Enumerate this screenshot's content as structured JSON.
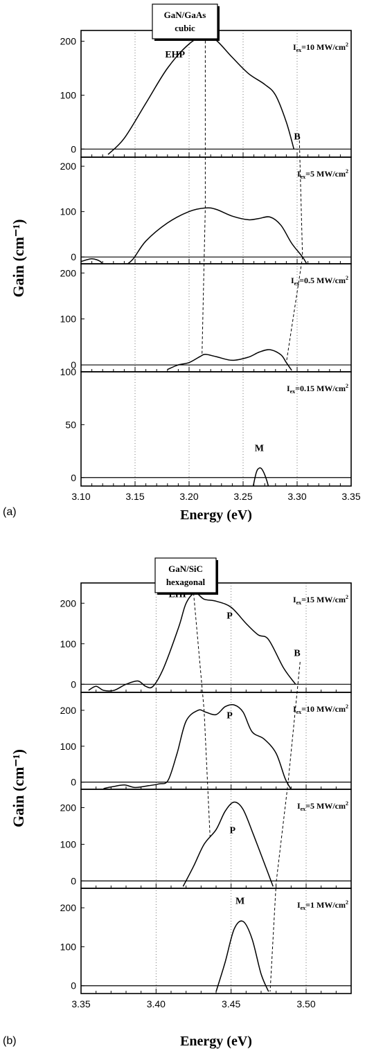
{
  "chart_data": [
    {
      "type": "line",
      "figure_label": "(a)",
      "sample": [
        "GaN/GaAs",
        "cubic"
      ],
      "xlabel": "Energy (eV)",
      "ylabel": "Gain (cm⁻¹)",
      "xlim": [
        3.1,
        3.35
      ],
      "xticks": [
        "3.10",
        "3.15",
        "3.20",
        "3.25",
        "3.30",
        "3.35"
      ],
      "grid": "vertical dotted",
      "panels": [
        {
          "series": [
            {
              "x": [
                3.125,
                3.14,
                3.16,
                3.18,
                3.2,
                3.215,
                3.225,
                3.24,
                3.255,
                3.27,
                3.28,
                3.29,
                3.297
              ],
              "y": [
                -10,
                20,
                85,
                150,
                195,
                210,
                202,
                170,
                140,
                120,
                100,
                50,
                0
              ]
            }
          ],
          "ylim": [
            -15,
            220
          ],
          "yticks": [
            "0",
            "100",
            "200"
          ],
          "intensity": {
            "prefix": "I",
            "sub": "ex",
            "value": "=10 MW/cm",
            "sup": "2"
          },
          "labels": [
            {
              "text": "EHP",
              "x": 3.187,
              "y": 170
            },
            {
              "text": "B",
              "x": 3.3,
              "y": 18
            }
          ]
        },
        {
          "series": [
            {
              "x": [
                3.1,
                3.11,
                3.118,
                3.12
              ],
              "y": [
                -10,
                -4,
                -10,
                -20
              ]
            },
            {
              "x": [
                3.14,
                3.148,
                3.16,
                3.18,
                3.2,
                3.215,
                3.225,
                3.24,
                3.255,
                3.265,
                3.275,
                3.285,
                3.295,
                3.305,
                3.31
              ],
              "y": [
                -20,
                -5,
                35,
                75,
                100,
                108,
                105,
                90,
                82,
                85,
                88,
                70,
                30,
                0,
                -20
              ]
            }
          ],
          "ylim": [
            -15,
            220
          ],
          "yticks": [
            "0",
            "100",
            "200"
          ],
          "intensity": {
            "prefix": "I",
            "sub": "ex",
            "value": "=5 MW/cm",
            "sup": "2"
          },
          "labels": []
        },
        {
          "series": [
            {
              "x": [
                3.18,
                3.19,
                3.2,
                3.21,
                3.215,
                3.225,
                3.24,
                3.255,
                3.265,
                3.275,
                3.285,
                3.29,
                3.295
              ],
              "y": [
                -10,
                0,
                5,
                18,
                23,
                18,
                10,
                17,
                28,
                33,
                22,
                5,
                -12
              ]
            }
          ],
          "ylim": [
            -15,
            220
          ],
          "yticks": [
            "0",
            "100",
            "200"
          ],
          "intensity": {
            "prefix": "I",
            "sub": "ex",
            "value": "=0.5 MW/cm",
            "sup": "2"
          },
          "labels": []
        },
        {
          "series": [
            {
              "x": [
                3.258,
                3.262,
                3.265,
                3.268,
                3.272,
                3.275
              ],
              "y": [
                -15,
                4,
                9,
                7,
                -3,
                -15
              ]
            }
          ],
          "ylim": [
            -8,
            100
          ],
          "yticks": [
            "0",
            "50",
            "100"
          ],
          "intensity": {
            "prefix": "I",
            "sub": "ex",
            "value": "=0.15 MW/cm",
            "sup": "2"
          },
          "labels": [
            {
              "text": "M",
              "x": 3.265,
              "y": 25
            }
          ]
        }
      ],
      "dashed_guides": [
        {
          "label": "EHP",
          "points": [
            [
              0,
              3.215,
              210
            ],
            [
              1,
              3.215,
              108
            ],
            [
              2,
              3.212,
              23
            ]
          ]
        },
        {
          "label": "B",
          "points": [
            [
              0,
              3.302,
              25
            ],
            [
              1,
              3.305,
              0
            ],
            [
              2,
              3.29,
              5
            ]
          ]
        }
      ]
    },
    {
      "type": "line",
      "figure_label": "(b)",
      "sample": [
        "GaN/SiC",
        "hexagonal"
      ],
      "xlabel": "Energy (eV)",
      "ylabel": "Gain (cm⁻¹)",
      "xlim": [
        3.35,
        3.53
      ],
      "xticks": [
        "3.35",
        "3.40",
        "3.45",
        "3.50"
      ],
      "grid": "vertical dotted",
      "panels": [
        {
          "series": [
            {
              "x": [
                3.355,
                3.36,
                3.365,
                3.372,
                3.38,
                3.388,
                3.393,
                3.398,
                3.405,
                3.415,
                3.42,
                3.426,
                3.432,
                3.44,
                3.45,
                3.46,
                3.468,
                3.475,
                3.485,
                3.493
              ],
              "y": [
                -15,
                -5,
                -15,
                -15,
                0,
                8,
                -5,
                -5,
                40,
                140,
                200,
                225,
                210,
                205,
                190,
                150,
                122,
                110,
                40,
                0
              ]
            }
          ],
          "ylim": [
            -20,
            250
          ],
          "yticks": [
            "0",
            "100",
            "200"
          ],
          "intensity": {
            "prefix": "I",
            "sub": "ex",
            "value": "=15 MW/cm",
            "sup": "2"
          },
          "labels": [
            {
              "text": "EHP",
              "x": 3.415,
              "y": 215
            },
            {
              "text": "P",
              "x": 3.449,
              "y": 162
            },
            {
              "text": "B",
              "x": 3.494,
              "y": 70
            }
          ]
        },
        {
          "series": [
            {
              "x": [
                3.365,
                3.372,
                3.379,
                3.386,
                3.395,
                3.402,
                3.408,
                3.414,
                3.42,
                3.428,
                3.433,
                3.44,
                3.446,
                3.452,
                3.458,
                3.464,
                3.472,
                3.48,
                3.486,
                3.49
              ],
              "y": [
                -18,
                -12,
                -8,
                -15,
                -10,
                -5,
                5,
                80,
                170,
                200,
                195,
                188,
                210,
                215,
                195,
                140,
                120,
                80,
                10,
                -20
              ]
            }
          ],
          "ylim": [
            -20,
            250
          ],
          "yticks": [
            "0",
            "100",
            "200"
          ],
          "intensity": {
            "prefix": "I",
            "sub": "ex",
            "value": "=10 MW/cm",
            "sup": "2"
          },
          "labels": [
            {
              "text": "P",
              "x": 3.449,
              "y": 178
            }
          ]
        },
        {
          "series": [
            {
              "x": [
                3.418,
                3.425,
                3.432,
                3.44,
                3.446,
                3.452,
                3.458,
                3.465,
                3.472,
                3.478
              ],
              "y": [
                -15,
                40,
                100,
                140,
                190,
                215,
                195,
                125,
                50,
                -15
              ]
            }
          ],
          "ylim": [
            -20,
            250
          ],
          "yticks": [
            "0",
            "100",
            "200"
          ],
          "intensity": {
            "prefix": "I",
            "sub": "ex",
            "value": "=5 MW/cm",
            "sup": "2"
          },
          "labels": [
            {
              "text": "P",
              "x": 3.451,
              "y": 130
            }
          ]
        },
        {
          "series": [
            {
              "x": [
                3.44,
                3.446,
                3.452,
                3.458,
                3.464,
                3.47,
                3.475
              ],
              "y": [
                -15,
                60,
                145,
                165,
                120,
                30,
                -15
              ]
            }
          ],
          "ylim": [
            -20,
            250
          ],
          "yticks": [
            "0",
            "100",
            "200"
          ],
          "intensity": {
            "prefix": "I",
            "sub": "ex",
            "value": "=1 MW/cm",
            "sup": "2"
          },
          "labels": [
            {
              "text": "M",
              "x": 3.456,
              "y": 210
            }
          ]
        }
      ],
      "dashed_guides": [
        {
          "label": "EHP",
          "points": [
            [
              0,
              3.425,
              225
            ],
            [
              1,
              3.432,
              200
            ],
            [
              2,
              3.436,
              120
            ]
          ]
        },
        {
          "label": "B",
          "points": [
            [
              0,
              3.496,
              55
            ],
            [
              1,
              3.488,
              0
            ],
            [
              2,
              3.48,
              -5
            ],
            [
              3,
              3.476,
              -15
            ]
          ]
        }
      ]
    }
  ]
}
